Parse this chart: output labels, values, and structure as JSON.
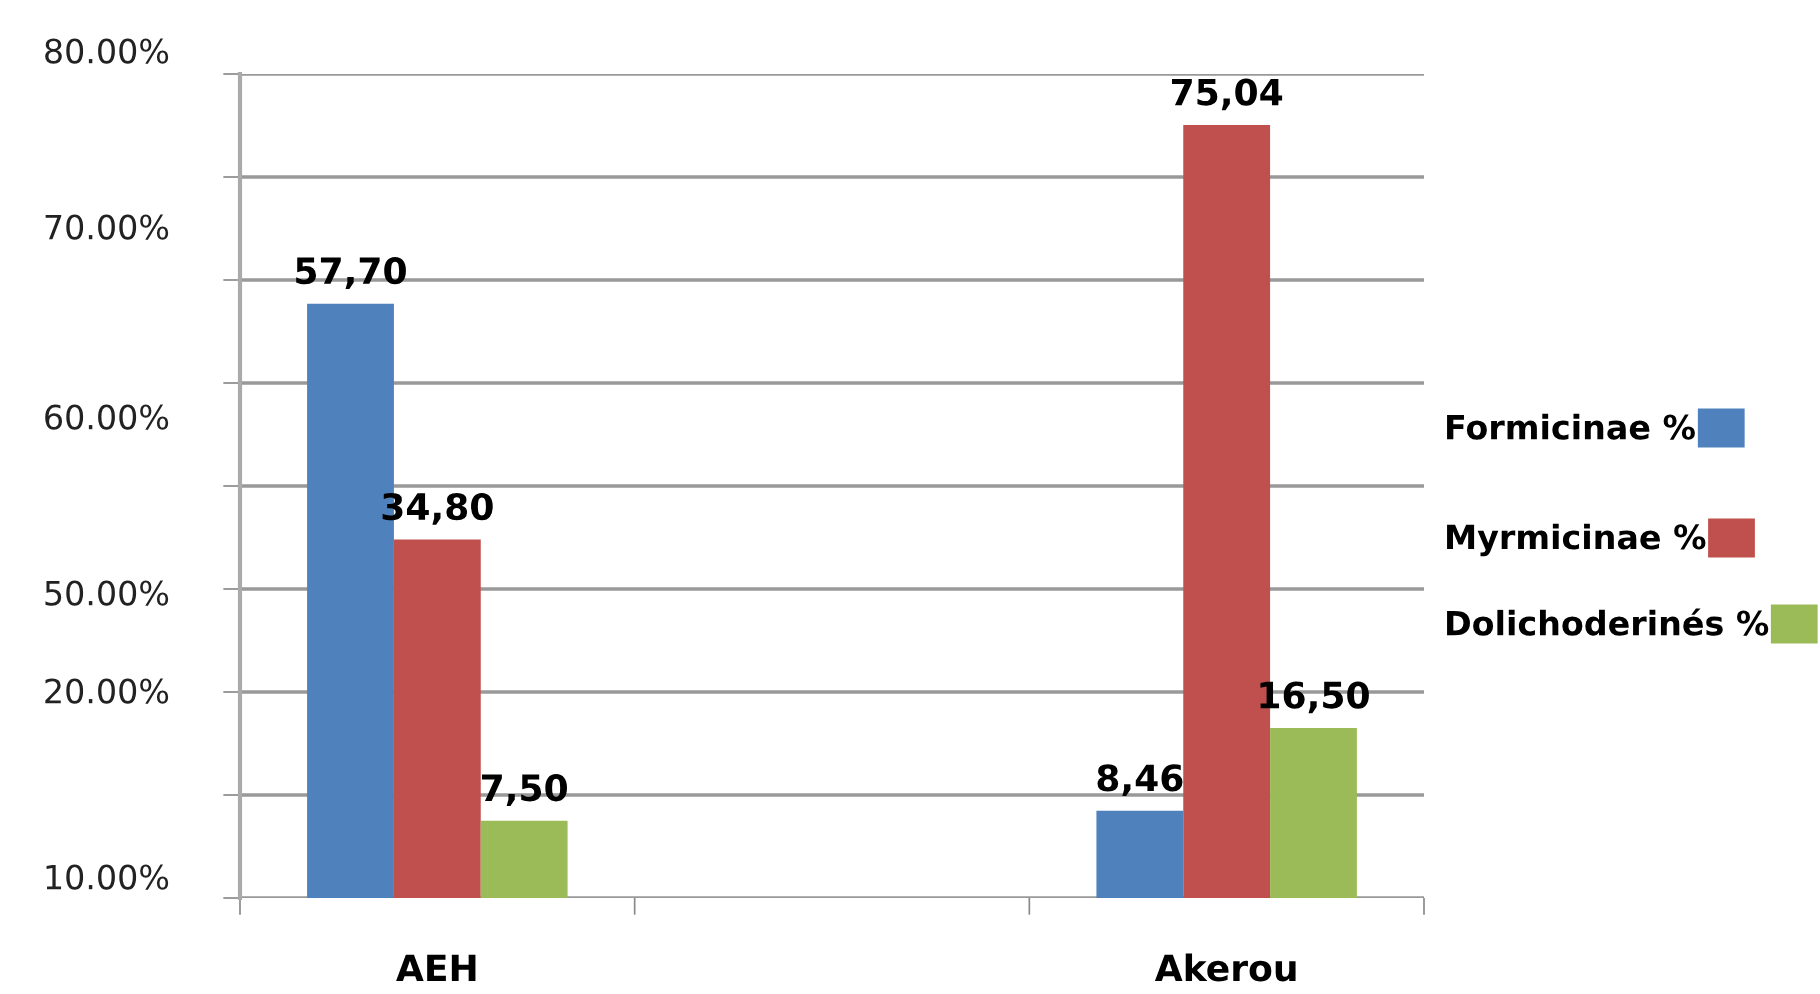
{
  "chart_data": {
    "type": "bar",
    "categories": [
      "AEH",
      null,
      "Akerou"
    ],
    "series": [
      {
        "name": "Formicinae %",
        "color": "#4f81bd",
        "values": [
          57.7,
          null,
          8.46
        ],
        "value_labels": [
          "57,70",
          null,
          "8,46"
        ]
      },
      {
        "name": "Myrmicinae %",
        "color": "#c0504d",
        "values": [
          34.8,
          null,
          75.04
        ],
        "value_labels": [
          "34,80",
          null,
          "75,04"
        ]
      },
      {
        "name": "Dolichoderinés %",
        "color": "#9bbb59",
        "values": [
          7.5,
          null,
          16.5
        ],
        "value_labels": [
          "7,50",
          null,
          "16,50"
        ]
      }
    ],
    "ylim": [
      0,
      80
    ],
    "yticks": [
      {
        "value": 0,
        "label": null
      },
      {
        "value": 10,
        "label": null
      },
      {
        "value": 20,
        "label": null
      },
      {
        "value": 30,
        "label": null
      },
      {
        "value": 40,
        "label": null
      },
      {
        "value": 50,
        "label": null
      },
      {
        "value": 60,
        "label": null
      },
      {
        "value": 70,
        "label": null
      },
      {
        "value": 80,
        "label": null
      }
    ],
    "annotations": [
      "80.00%",
      "70.00%",
      "60.00%",
      "50.00%",
      "20.00%",
      "10.00%"
    ],
    "grid": "y",
    "legend": "right"
  }
}
